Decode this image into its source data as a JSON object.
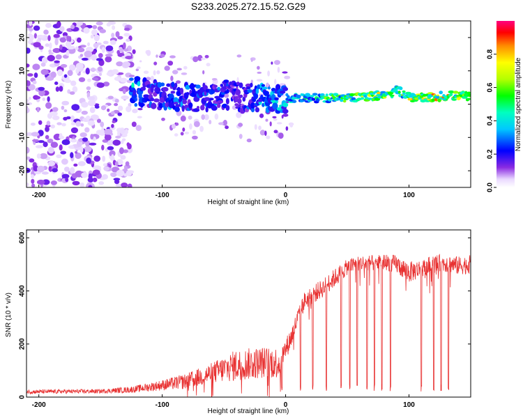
{
  "chart_data": [
    {
      "type": "heatmap",
      "title": "S233.2025.272.15.52.G29",
      "xlabel": "Height of straight line (km)",
      "ylabel": "Frequency (Hz)",
      "xlim": [
        -210,
        150
      ],
      "ylim": [
        -25,
        25
      ],
      "xticks": [
        -200,
        -100,
        0,
        100
      ],
      "yticks": [
        -20,
        -10,
        0,
        10,
        20
      ],
      "colorbar": {
        "label": "Normalized spectral amplitude",
        "range": [
          0,
          1
        ],
        "ticks": [
          0,
          0.2,
          0.4,
          0.6,
          0.8
        ],
        "tick_labels": [
          "0.0",
          "0.2",
          "0.4",
          "0.6",
          "0.8"
        ]
      },
      "ridge": {
        "x": [
          -125,
          -110,
          -90,
          -70,
          -50,
          -35,
          -20,
          -5,
          10,
          30,
          50,
          70,
          85,
          90,
          100,
          115,
          130,
          150
        ],
        "freq": [
          4,
          3,
          2,
          2,
          3,
          2,
          2,
          1.5,
          2,
          1.8,
          1.8,
          2.5,
          3,
          4.5,
          2,
          2,
          2.5,
          2.5
        ],
        "amplitude": [
          0.45,
          0.3,
          0.35,
          0.3,
          0.3,
          0.25,
          0.4,
          0.45,
          0.45,
          0.6,
          0.7,
          0.75,
          0.8,
          0.55,
          0.8,
          0.85,
          0.85,
          0.8
        ]
      },
      "noise_region_x": [
        -210,
        -125
      ]
    },
    {
      "type": "line",
      "xlabel": "Height of straight line (km)",
      "ylabel": "SNR (10 * v/v)",
      "xlim": [
        -210,
        150
      ],
      "ylim": [
        0,
        630
      ],
      "xticks": [
        -200,
        -100,
        0,
        100
      ],
      "yticks": [
        0,
        200,
        400,
        600
      ],
      "line_color": "#e83030",
      "envelope": {
        "x": [
          -210,
          -150,
          -125,
          -100,
          -80,
          -60,
          -40,
          -20,
          -5,
          0,
          5,
          10,
          15,
          20,
          30,
          40,
          50,
          60,
          70,
          80,
          90,
          100,
          110,
          120,
          130,
          140,
          150
        ],
        "base": [
          20,
          22,
          28,
          45,
          60,
          90,
          120,
          130,
          130,
          180,
          230,
          300,
          360,
          380,
          410,
          450,
          490,
          505,
          505,
          510,
          500,
          470,
          485,
          500,
          505,
          495,
          500
        ],
        "spread": [
          8,
          8,
          12,
          20,
          30,
          40,
          60,
          60,
          60,
          40,
          40,
          35,
          35,
          35,
          35,
          35,
          30,
          30,
          30,
          30,
          35,
          40,
          35,
          35,
          35,
          35,
          35
        ]
      },
      "dropouts_x": [
        -3,
        12,
        22,
        33,
        45,
        52,
        58,
        66,
        72,
        78,
        85,
        110,
        120,
        126,
        132
      ]
    }
  ]
}
